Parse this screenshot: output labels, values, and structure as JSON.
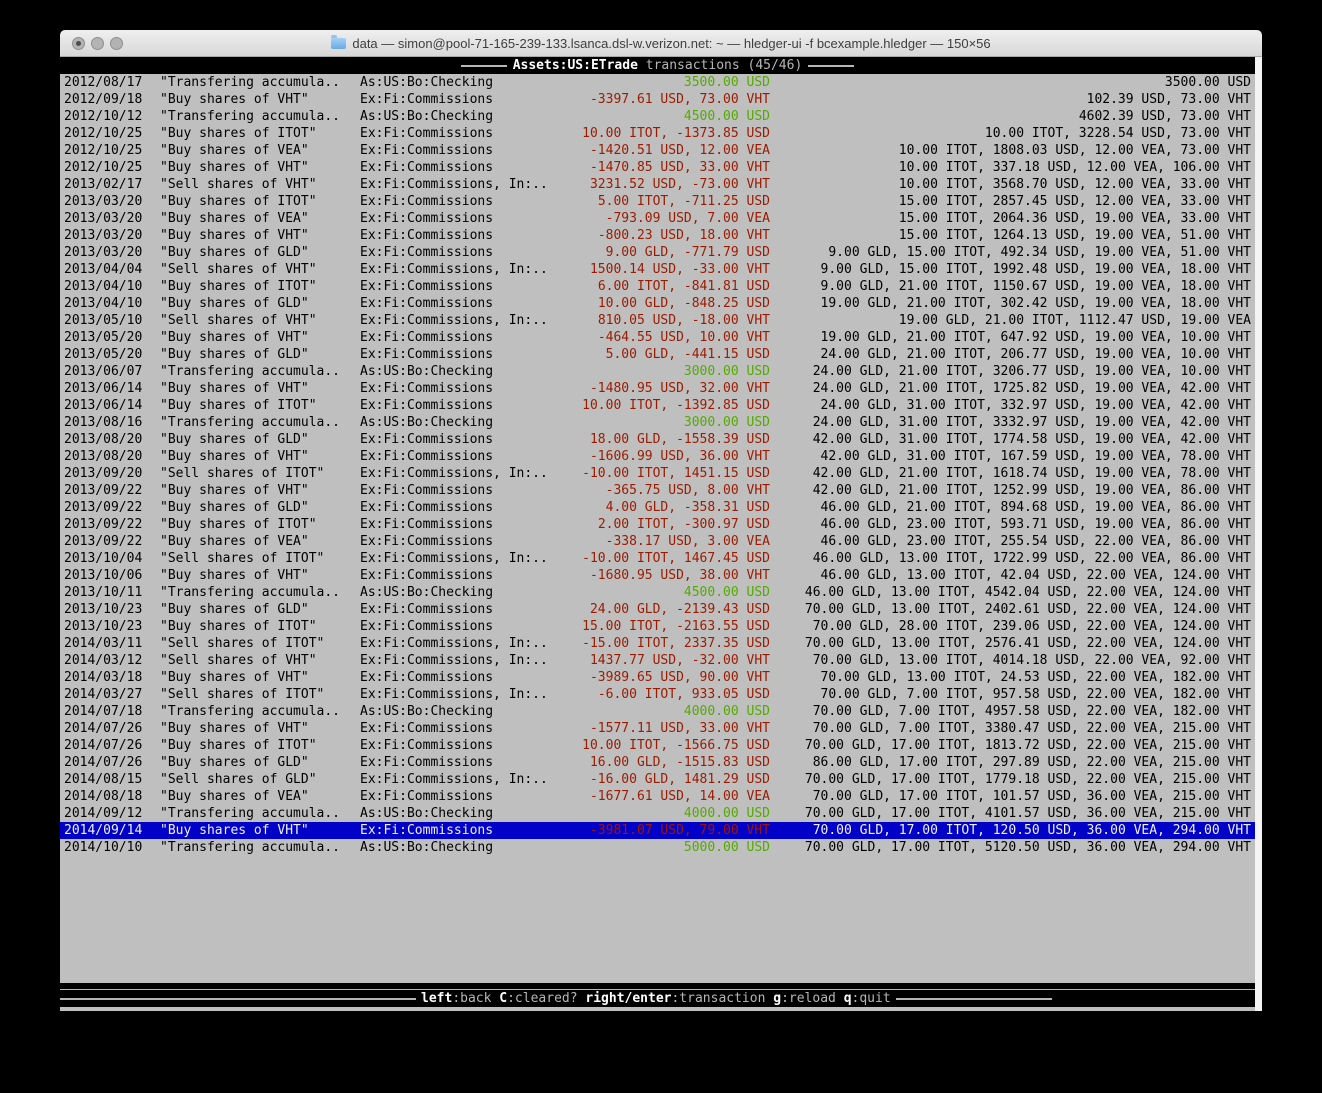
{
  "window": {
    "title": "data — simon@pool-71-165-239-133.lsanca.dsl-w.verizon.net: ~ — hledger-ui -f bcexample.hledger — 150×56"
  },
  "header": {
    "account": "Assets:US:ETrade",
    "suffix": " transactions (45/46)"
  },
  "footer": {
    "items": [
      {
        "key": "left",
        "desc": ":back"
      },
      {
        "key": "C",
        "desc": ":cleared?"
      },
      {
        "key": "right/enter",
        "desc": ":transaction"
      },
      {
        "key": "g",
        "desc": ":reload"
      },
      {
        "key": "q",
        "desc": ":quit"
      }
    ]
  },
  "colors": {
    "terminal_bg": "#bfbfbf",
    "positive_green": "#54ab00",
    "negative_red": "#9a1b00",
    "selection_blue": "#0101c7"
  },
  "transactions": [
    {
      "date": "2012/08/17",
      "description": "\"Transfering accumula..",
      "account": "As:US:Bo:Checking",
      "change": "3500.00 USD",
      "change_color": "green",
      "balance": "3500.00 USD",
      "selected": false
    },
    {
      "date": "2012/09/18",
      "description": "\"Buy shares of VHT\"",
      "account": "Ex:Fi:Commissions",
      "change": "-3397.61 USD, 73.00 VHT",
      "change_color": "red",
      "balance": "102.39 USD, 73.00 VHT",
      "selected": false
    },
    {
      "date": "2012/10/12",
      "description": "\"Transfering accumula..",
      "account": "As:US:Bo:Checking",
      "change": "4500.00 USD",
      "change_color": "green",
      "balance": "4602.39 USD, 73.00 VHT",
      "selected": false
    },
    {
      "date": "2012/10/25",
      "description": "\"Buy shares of ITOT\"",
      "account": "Ex:Fi:Commissions",
      "change": "10.00 ITOT, -1373.85 USD",
      "change_color": "red",
      "balance": "10.00 ITOT, 3228.54 USD, 73.00 VHT",
      "selected": false
    },
    {
      "date": "2012/10/25",
      "description": "\"Buy shares of VEA\"",
      "account": "Ex:Fi:Commissions",
      "change": "-1420.51 USD, 12.00 VEA",
      "change_color": "red",
      "balance": "10.00 ITOT, 1808.03 USD, 12.00 VEA, 73.00 VHT",
      "selected": false
    },
    {
      "date": "2012/10/25",
      "description": "\"Buy shares of VHT\"",
      "account": "Ex:Fi:Commissions",
      "change": "-1470.85 USD, 33.00 VHT",
      "change_color": "red",
      "balance": "10.00 ITOT, 337.18 USD, 12.00 VEA, 106.00 VHT",
      "selected": false
    },
    {
      "date": "2013/02/17",
      "description": "\"Sell shares of VHT\"",
      "account": "Ex:Fi:Commissions, In:..",
      "change": "3231.52 USD, -73.00 VHT",
      "change_color": "red",
      "balance": "10.00 ITOT, 3568.70 USD, 12.00 VEA, 33.00 VHT",
      "selected": false
    },
    {
      "date": "2013/03/20",
      "description": "\"Buy shares of ITOT\"",
      "account": "Ex:Fi:Commissions",
      "change": "5.00 ITOT, -711.25 USD",
      "change_color": "red",
      "balance": "15.00 ITOT, 2857.45 USD, 12.00 VEA, 33.00 VHT",
      "selected": false
    },
    {
      "date": "2013/03/20",
      "description": "\"Buy shares of VEA\"",
      "account": "Ex:Fi:Commissions",
      "change": "-793.09 USD, 7.00 VEA",
      "change_color": "red",
      "balance": "15.00 ITOT, 2064.36 USD, 19.00 VEA, 33.00 VHT",
      "selected": false
    },
    {
      "date": "2013/03/20",
      "description": "\"Buy shares of VHT\"",
      "account": "Ex:Fi:Commissions",
      "change": "-800.23 USD, 18.00 VHT",
      "change_color": "red",
      "balance": "15.00 ITOT, 1264.13 USD, 19.00 VEA, 51.00 VHT",
      "selected": false
    },
    {
      "date": "2013/03/20",
      "description": "\"Buy shares of GLD\"",
      "account": "Ex:Fi:Commissions",
      "change": "9.00 GLD, -771.79 USD",
      "change_color": "red",
      "balance": "9.00 GLD, 15.00 ITOT, 492.34 USD, 19.00 VEA, 51.00 VHT",
      "selected": false
    },
    {
      "date": "2013/04/04",
      "description": "\"Sell shares of VHT\"",
      "account": "Ex:Fi:Commissions, In:..",
      "change": "1500.14 USD, -33.00 VHT",
      "change_color": "red",
      "balance": "9.00 GLD, 15.00 ITOT, 1992.48 USD, 19.00 VEA, 18.00 VHT",
      "selected": false
    },
    {
      "date": "2013/04/10",
      "description": "\"Buy shares of ITOT\"",
      "account": "Ex:Fi:Commissions",
      "change": "6.00 ITOT, -841.81 USD",
      "change_color": "red",
      "balance": "9.00 GLD, 21.00 ITOT, 1150.67 USD, 19.00 VEA, 18.00 VHT",
      "selected": false
    },
    {
      "date": "2013/04/10",
      "description": "\"Buy shares of GLD\"",
      "account": "Ex:Fi:Commissions",
      "change": "10.00 GLD, -848.25 USD",
      "change_color": "red",
      "balance": "19.00 GLD, 21.00 ITOT, 302.42 USD, 19.00 VEA, 18.00 VHT",
      "selected": false
    },
    {
      "date": "2013/05/10",
      "description": "\"Sell shares of VHT\"",
      "account": "Ex:Fi:Commissions, In:..",
      "change": "810.05 USD, -18.00 VHT",
      "change_color": "red",
      "balance": "19.00 GLD, 21.00 ITOT, 1112.47 USD, 19.00 VEA",
      "selected": false
    },
    {
      "date": "2013/05/20",
      "description": "\"Buy shares of VHT\"",
      "account": "Ex:Fi:Commissions",
      "change": "-464.55 USD, 10.00 VHT",
      "change_color": "red",
      "balance": "19.00 GLD, 21.00 ITOT, 647.92 USD, 19.00 VEA, 10.00 VHT",
      "selected": false
    },
    {
      "date": "2013/05/20",
      "description": "\"Buy shares of GLD\"",
      "account": "Ex:Fi:Commissions",
      "change": "5.00 GLD, -441.15 USD",
      "change_color": "red",
      "balance": "24.00 GLD, 21.00 ITOT, 206.77 USD, 19.00 VEA, 10.00 VHT",
      "selected": false
    },
    {
      "date": "2013/06/07",
      "description": "\"Transfering accumula..",
      "account": "As:US:Bo:Checking",
      "change": "3000.00 USD",
      "change_color": "green",
      "balance": "24.00 GLD, 21.00 ITOT, 3206.77 USD, 19.00 VEA, 10.00 VHT",
      "selected": false
    },
    {
      "date": "2013/06/14",
      "description": "\"Buy shares of VHT\"",
      "account": "Ex:Fi:Commissions",
      "change": "-1480.95 USD, 32.00 VHT",
      "change_color": "red",
      "balance": "24.00 GLD, 21.00 ITOT, 1725.82 USD, 19.00 VEA, 42.00 VHT",
      "selected": false
    },
    {
      "date": "2013/06/14",
      "description": "\"Buy shares of ITOT\"",
      "account": "Ex:Fi:Commissions",
      "change": "10.00 ITOT, -1392.85 USD",
      "change_color": "red",
      "balance": "24.00 GLD, 31.00 ITOT, 332.97 USD, 19.00 VEA, 42.00 VHT",
      "selected": false
    },
    {
      "date": "2013/08/16",
      "description": "\"Transfering accumula..",
      "account": "As:US:Bo:Checking",
      "change": "3000.00 USD",
      "change_color": "green",
      "balance": "24.00 GLD, 31.00 ITOT, 3332.97 USD, 19.00 VEA, 42.00 VHT",
      "selected": false
    },
    {
      "date": "2013/08/20",
      "description": "\"Buy shares of GLD\"",
      "account": "Ex:Fi:Commissions",
      "change": "18.00 GLD, -1558.39 USD",
      "change_color": "red",
      "balance": "42.00 GLD, 31.00 ITOT, 1774.58 USD, 19.00 VEA, 42.00 VHT",
      "selected": false
    },
    {
      "date": "2013/08/20",
      "description": "\"Buy shares of VHT\"",
      "account": "Ex:Fi:Commissions",
      "change": "-1606.99 USD, 36.00 VHT",
      "change_color": "red",
      "balance": "42.00 GLD, 31.00 ITOT, 167.59 USD, 19.00 VEA, 78.00 VHT",
      "selected": false
    },
    {
      "date": "2013/09/20",
      "description": "\"Sell shares of ITOT\"",
      "account": "Ex:Fi:Commissions, In:..",
      "change": "-10.00 ITOT, 1451.15 USD",
      "change_color": "red",
      "balance": "42.00 GLD, 21.00 ITOT, 1618.74 USD, 19.00 VEA, 78.00 VHT",
      "selected": false
    },
    {
      "date": "2013/09/22",
      "description": "\"Buy shares of VHT\"",
      "account": "Ex:Fi:Commissions",
      "change": "-365.75 USD, 8.00 VHT",
      "change_color": "red",
      "balance": "42.00 GLD, 21.00 ITOT, 1252.99 USD, 19.00 VEA, 86.00 VHT",
      "selected": false
    },
    {
      "date": "2013/09/22",
      "description": "\"Buy shares of GLD\"",
      "account": "Ex:Fi:Commissions",
      "change": "4.00 GLD, -358.31 USD",
      "change_color": "red",
      "balance": "46.00 GLD, 21.00 ITOT, 894.68 USD, 19.00 VEA, 86.00 VHT",
      "selected": false
    },
    {
      "date": "2013/09/22",
      "description": "\"Buy shares of ITOT\"",
      "account": "Ex:Fi:Commissions",
      "change": "2.00 ITOT, -300.97 USD",
      "change_color": "red",
      "balance": "46.00 GLD, 23.00 ITOT, 593.71 USD, 19.00 VEA, 86.00 VHT",
      "selected": false
    },
    {
      "date": "2013/09/22",
      "description": "\"Buy shares of VEA\"",
      "account": "Ex:Fi:Commissions",
      "change": "-338.17 USD, 3.00 VEA",
      "change_color": "red",
      "balance": "46.00 GLD, 23.00 ITOT, 255.54 USD, 22.00 VEA, 86.00 VHT",
      "selected": false
    },
    {
      "date": "2013/10/04",
      "description": "\"Sell shares of ITOT\"",
      "account": "Ex:Fi:Commissions, In:..",
      "change": "-10.00 ITOT, 1467.45 USD",
      "change_color": "red",
      "balance": "46.00 GLD, 13.00 ITOT, 1722.99 USD, 22.00 VEA, 86.00 VHT",
      "selected": false
    },
    {
      "date": "2013/10/06",
      "description": "\"Buy shares of VHT\"",
      "account": "Ex:Fi:Commissions",
      "change": "-1680.95 USD, 38.00 VHT",
      "change_color": "red",
      "balance": "46.00 GLD, 13.00 ITOT, 42.04 USD, 22.00 VEA, 124.00 VHT",
      "selected": false
    },
    {
      "date": "2013/10/11",
      "description": "\"Transfering accumula..",
      "account": "As:US:Bo:Checking",
      "change": "4500.00 USD",
      "change_color": "green",
      "balance": "46.00 GLD, 13.00 ITOT, 4542.04 USD, 22.00 VEA, 124.00 VHT",
      "selected": false
    },
    {
      "date": "2013/10/23",
      "description": "\"Buy shares of GLD\"",
      "account": "Ex:Fi:Commissions",
      "change": "24.00 GLD, -2139.43 USD",
      "change_color": "red",
      "balance": "70.00 GLD, 13.00 ITOT, 2402.61 USD, 22.00 VEA, 124.00 VHT",
      "selected": false
    },
    {
      "date": "2013/10/23",
      "description": "\"Buy shares of ITOT\"",
      "account": "Ex:Fi:Commissions",
      "change": "15.00 ITOT, -2163.55 USD",
      "change_color": "red",
      "balance": "70.00 GLD, 28.00 ITOT, 239.06 USD, 22.00 VEA, 124.00 VHT",
      "selected": false
    },
    {
      "date": "2014/03/11",
      "description": "\"Sell shares of ITOT\"",
      "account": "Ex:Fi:Commissions, In:..",
      "change": "-15.00 ITOT, 2337.35 USD",
      "change_color": "red",
      "balance": "70.00 GLD, 13.00 ITOT, 2576.41 USD, 22.00 VEA, 124.00 VHT",
      "selected": false
    },
    {
      "date": "2014/03/12",
      "description": "\"Sell shares of VHT\"",
      "account": "Ex:Fi:Commissions, In:..",
      "change": "1437.77 USD, -32.00 VHT",
      "change_color": "red",
      "balance": "70.00 GLD, 13.00 ITOT, 4014.18 USD, 22.00 VEA, 92.00 VHT",
      "selected": false
    },
    {
      "date": "2014/03/18",
      "description": "\"Buy shares of VHT\"",
      "account": "Ex:Fi:Commissions",
      "change": "-3989.65 USD, 90.00 VHT",
      "change_color": "red",
      "balance": "70.00 GLD, 13.00 ITOT, 24.53 USD, 22.00 VEA, 182.00 VHT",
      "selected": false
    },
    {
      "date": "2014/03/27",
      "description": "\"Sell shares of ITOT\"",
      "account": "Ex:Fi:Commissions, In:..",
      "change": "-6.00 ITOT, 933.05 USD",
      "change_color": "red",
      "balance": "70.00 GLD, 7.00 ITOT, 957.58 USD, 22.00 VEA, 182.00 VHT",
      "selected": false
    },
    {
      "date": "2014/07/18",
      "description": "\"Transfering accumula..",
      "account": "As:US:Bo:Checking",
      "change": "4000.00 USD",
      "change_color": "green",
      "balance": "70.00 GLD, 7.00 ITOT, 4957.58 USD, 22.00 VEA, 182.00 VHT",
      "selected": false
    },
    {
      "date": "2014/07/26",
      "description": "\"Buy shares of VHT\"",
      "account": "Ex:Fi:Commissions",
      "change": "-1577.11 USD, 33.00 VHT",
      "change_color": "red",
      "balance": "70.00 GLD, 7.00 ITOT, 3380.47 USD, 22.00 VEA, 215.00 VHT",
      "selected": false
    },
    {
      "date": "2014/07/26",
      "description": "\"Buy shares of ITOT\"",
      "account": "Ex:Fi:Commissions",
      "change": "10.00 ITOT, -1566.75 USD",
      "change_color": "red",
      "balance": "70.00 GLD, 17.00 ITOT, 1813.72 USD, 22.00 VEA, 215.00 VHT",
      "selected": false
    },
    {
      "date": "2014/07/26",
      "description": "\"Buy shares of GLD\"",
      "account": "Ex:Fi:Commissions",
      "change": "16.00 GLD, -1515.83 USD",
      "change_color": "red",
      "balance": "86.00 GLD, 17.00 ITOT, 297.89 USD, 22.00 VEA, 215.00 VHT",
      "selected": false
    },
    {
      "date": "2014/08/15",
      "description": "\"Sell shares of GLD\"",
      "account": "Ex:Fi:Commissions, In:..",
      "change": "-16.00 GLD, 1481.29 USD",
      "change_color": "red",
      "balance": "70.00 GLD, 17.00 ITOT, 1779.18 USD, 22.00 VEA, 215.00 VHT",
      "selected": false
    },
    {
      "date": "2014/08/18",
      "description": "\"Buy shares of VEA\"",
      "account": "Ex:Fi:Commissions",
      "change": "-1677.61 USD, 14.00 VEA",
      "change_color": "red",
      "balance": "70.00 GLD, 17.00 ITOT, 101.57 USD, 36.00 VEA, 215.00 VHT",
      "selected": false
    },
    {
      "date": "2014/09/12",
      "description": "\"Transfering accumula..",
      "account": "As:US:Bo:Checking",
      "change": "4000.00 USD",
      "change_color": "green",
      "balance": "70.00 GLD, 17.00 ITOT, 4101.57 USD, 36.00 VEA, 215.00 VHT",
      "selected": false
    },
    {
      "date": "2014/09/14",
      "description": "\"Buy shares of VHT\"",
      "account": "Ex:Fi:Commissions",
      "change": "-3981.07 USD, 79.00 VHT",
      "change_color": "red",
      "balance": "70.00 GLD, 17.00 ITOT, 120.50 USD, 36.00 VEA, 294.00 VHT",
      "selected": true
    },
    {
      "date": "2014/10/10",
      "description": "\"Transfering accumula..",
      "account": "As:US:Bo:Checking",
      "change": "5000.00 USD",
      "change_color": "green",
      "balance": "70.00 GLD, 17.00 ITOT, 5120.50 USD, 36.00 VEA, 294.00 VHT",
      "selected": false
    }
  ]
}
